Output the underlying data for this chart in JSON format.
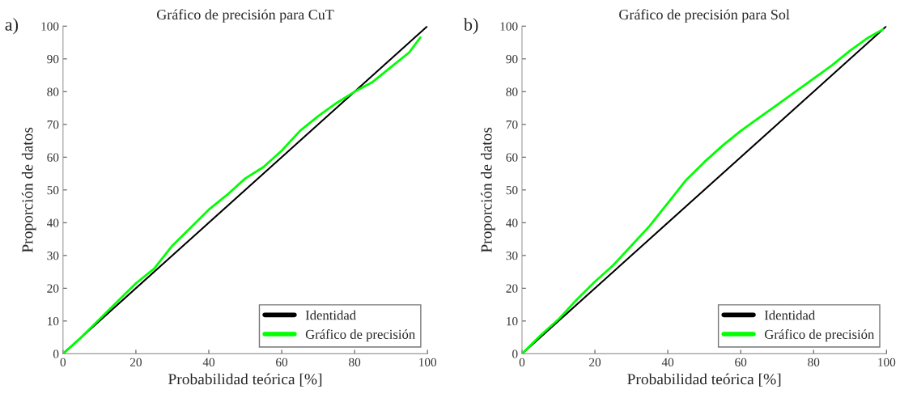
{
  "chart_data": [
    {
      "type": "line",
      "title": "Gráfico de precisión para CuT",
      "xlabel": "Probabilidad teórica [%]",
      "ylabel": "Proporción de datos",
      "annotations": [
        "a)"
      ],
      "series": [
        {
          "name": "Identidad",
          "color": "#000000",
          "x": [
            0,
            100
          ],
          "values": [
            0,
            100
          ]
        },
        {
          "name": "Gráfico de precisión",
          "color": "#00ff00",
          "x": [
            0,
            5,
            10,
            15,
            20,
            25,
            30,
            35,
            40,
            45,
            50,
            55,
            60,
            65,
            70,
            75,
            80,
            85,
            90,
            95,
            98
          ],
          "values": [
            0,
            5,
            10.5,
            16,
            21.5,
            26,
            33,
            38.5,
            44,
            48.5,
            53.5,
            57,
            62,
            68,
            72.5,
            76.5,
            80,
            83,
            87.5,
            92,
            96.5
          ]
        }
      ],
      "xlim": [
        0,
        100
      ],
      "ylim": [
        0,
        100
      ],
      "xticks": [
        0,
        20,
        40,
        60,
        80,
        100
      ],
      "yticks": [
        0,
        10,
        20,
        30,
        40,
        50,
        60,
        70,
        80,
        90,
        100
      ],
      "grid": false,
      "legend": "bottom right"
    },
    {
      "type": "line",
      "title": "Gráfico de precisión para Sol",
      "xlabel": "Probabilidad teórica [%]",
      "ylabel": "Proporción de datos",
      "annotations": [
        "b)"
      ],
      "series": [
        {
          "name": "Identidad",
          "color": "#000000",
          "x": [
            0,
            100
          ],
          "values": [
            0,
            100
          ]
        },
        {
          "name": "Gráfico de precisión",
          "color": "#00ff00",
          "x": [
            0,
            5,
            10,
            15,
            20,
            25,
            30,
            35,
            40,
            45,
            50,
            55,
            60,
            65,
            70,
            75,
            80,
            85,
            90,
            95,
            99
          ],
          "values": [
            0,
            5.5,
            10.5,
            16.5,
            22,
            27,
            33,
            39,
            46,
            53,
            58.5,
            63.5,
            68,
            72,
            76,
            80,
            84,
            88,
            92.5,
            96.5,
            99
          ]
        }
      ],
      "xlim": [
        0,
        100
      ],
      "ylim": [
        0,
        100
      ],
      "xticks": [
        0,
        20,
        40,
        60,
        80,
        100
      ],
      "yticks": [
        0,
        10,
        20,
        30,
        40,
        50,
        60,
        70,
        80,
        90,
        100
      ],
      "grid": false,
      "legend": "bottom right"
    }
  ]
}
